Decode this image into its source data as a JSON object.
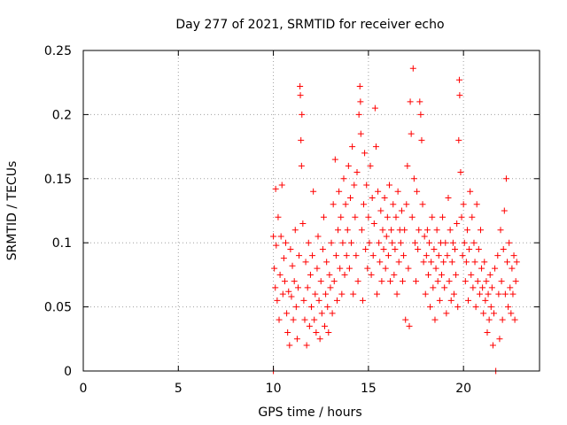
{
  "chart_data": {
    "type": "scatter",
    "title": "Day 277 of 2021, SRMTID for receiver echo",
    "xlabel": "GPS time / hours",
    "ylabel": "SRMTID / TECUs",
    "xlim": [
      0,
      24
    ],
    "ylim": [
      0,
      0.25
    ],
    "xticks": [
      0,
      5,
      10,
      15,
      20
    ],
    "xtick_labels": [
      "0",
      "5",
      "10",
      "15",
      "20"
    ],
    "yticks": [
      0,
      0.05,
      0.1,
      0.15,
      0.2,
      0.25
    ],
    "ytick_labels": [
      "0",
      "0.05",
      "0.1",
      "0.15",
      "0.2",
      "0.25"
    ],
    "grid": true,
    "marker": "plus",
    "point_color": "#ff0000",
    "series": [
      {
        "name": "SRMTID",
        "points": [
          [
            10.0,
            0.0
          ],
          [
            21.7,
            0.0
          ],
          [
            10.0,
            0.105
          ],
          [
            10.05,
            0.08
          ],
          [
            10.1,
            0.065
          ],
          [
            10.12,
            0.142
          ],
          [
            10.15,
            0.098
          ],
          [
            10.2,
            0.055
          ],
          [
            10.25,
            0.12
          ],
          [
            10.3,
            0.04
          ],
          [
            10.35,
            0.075
          ],
          [
            10.4,
            0.105
          ],
          [
            10.45,
            0.145
          ],
          [
            10.5,
            0.06
          ],
          [
            10.55,
            0.088
          ],
          [
            10.6,
            0.07
          ],
          [
            10.65,
            0.1
          ],
          [
            10.7,
            0.045
          ],
          [
            10.75,
            0.03
          ],
          [
            10.8,
            0.062
          ],
          [
            10.85,
            0.02
          ],
          [
            10.9,
            0.095
          ],
          [
            10.95,
            0.058
          ],
          [
            11.0,
            0.082
          ],
          [
            11.05,
            0.04
          ],
          [
            11.1,
            0.07
          ],
          [
            11.15,
            0.11
          ],
          [
            11.2,
            0.05
          ],
          [
            11.25,
            0.025
          ],
          [
            11.3,
            0.065
          ],
          [
            11.35,
            0.09
          ],
          [
            11.4,
            0.222
          ],
          [
            11.42,
            0.215
          ],
          [
            11.45,
            0.18
          ],
          [
            11.48,
            0.16
          ],
          [
            11.5,
            0.2
          ],
          [
            11.55,
            0.115
          ],
          [
            11.6,
            0.055
          ],
          [
            11.65,
            0.04
          ],
          [
            11.7,
            0.085
          ],
          [
            11.75,
            0.02
          ],
          [
            11.8,
            0.065
          ],
          [
            11.85,
            0.1
          ],
          [
            11.9,
            0.035
          ],
          [
            11.95,
            0.075
          ],
          [
            12.0,
            0.05
          ],
          [
            12.05,
            0.09
          ],
          [
            12.1,
            0.14
          ],
          [
            12.15,
            0.04
          ],
          [
            12.2,
            0.06
          ],
          [
            12.25,
            0.03
          ],
          [
            12.3,
            0.08
          ],
          [
            12.35,
            0.105
          ],
          [
            12.4,
            0.055
          ],
          [
            12.45,
            0.025
          ],
          [
            12.5,
            0.07
          ],
          [
            12.55,
            0.045
          ],
          [
            12.6,
            0.095
          ],
          [
            12.65,
            0.12
          ],
          [
            12.7,
            0.035
          ],
          [
            12.75,
            0.06
          ],
          [
            12.8,
            0.085
          ],
          [
            12.85,
            0.05
          ],
          [
            12.9,
            0.03
          ],
          [
            12.95,
            0.075
          ],
          [
            13.0,
            0.065
          ],
          [
            13.05,
            0.1
          ],
          [
            13.1,
            0.045
          ],
          [
            13.15,
            0.13
          ],
          [
            13.2,
            0.07
          ],
          [
            13.25,
            0.165
          ],
          [
            13.3,
            0.09
          ],
          [
            13.35,
            0.055
          ],
          [
            13.4,
            0.11
          ],
          [
            13.45,
            0.14
          ],
          [
            13.5,
            0.08
          ],
          [
            13.55,
            0.12
          ],
          [
            13.6,
            0.06
          ],
          [
            13.65,
            0.1
          ],
          [
            13.7,
            0.15
          ],
          [
            13.75,
            0.075
          ],
          [
            13.8,
            0.13
          ],
          [
            13.85,
            0.09
          ],
          [
            13.9,
            0.11
          ],
          [
            13.95,
            0.16
          ],
          [
            14.0,
            0.08
          ],
          [
            14.05,
            0.135
          ],
          [
            14.1,
            0.1
          ],
          [
            14.15,
            0.175
          ],
          [
            14.2,
            0.06
          ],
          [
            14.25,
            0.145
          ],
          [
            14.3,
            0.12
          ],
          [
            14.35,
            0.09
          ],
          [
            14.4,
            0.155
          ],
          [
            14.45,
            0.07
          ],
          [
            14.5,
            0.2
          ],
          [
            14.55,
            0.222
          ],
          [
            14.58,
            0.21
          ],
          [
            14.6,
            0.185
          ],
          [
            14.65,
            0.11
          ],
          [
            14.7,
            0.055
          ],
          [
            14.75,
            0.13
          ],
          [
            14.8,
            0.17
          ],
          [
            14.85,
            0.095
          ],
          [
            14.9,
            0.145
          ],
          [
            14.95,
            0.08
          ],
          [
            15.0,
            0.12
          ],
          [
            15.05,
            0.1
          ],
          [
            15.1,
            0.16
          ],
          [
            15.15,
            0.075
          ],
          [
            15.2,
            0.135
          ],
          [
            15.25,
            0.09
          ],
          [
            15.3,
            0.115
          ],
          [
            15.35,
            0.205
          ],
          [
            15.4,
            0.175
          ],
          [
            15.45,
            0.06
          ],
          [
            15.5,
            0.14
          ],
          [
            15.55,
            0.1
          ],
          [
            15.6,
            0.085
          ],
          [
            15.65,
            0.125
          ],
          [
            15.7,
            0.07
          ],
          [
            15.75,
            0.11
          ],
          [
            15.8,
            0.095
          ],
          [
            15.85,
            0.135
          ],
          [
            15.9,
            0.08
          ],
          [
            15.95,
            0.105
          ],
          [
            16.0,
            0.12
          ],
          [
            16.05,
            0.09
          ],
          [
            16.1,
            0.145
          ],
          [
            16.15,
            0.07
          ],
          [
            16.2,
            0.11
          ],
          [
            16.25,
            0.1
          ],
          [
            16.3,
            0.13
          ],
          [
            16.35,
            0.075
          ],
          [
            16.4,
            0.095
          ],
          [
            16.45,
            0.12
          ],
          [
            16.5,
            0.06
          ],
          [
            16.55,
            0.14
          ],
          [
            16.6,
            0.085
          ],
          [
            16.65,
            0.11
          ],
          [
            16.7,
            0.1
          ],
          [
            16.75,
            0.125
          ],
          [
            16.8,
            0.07
          ],
          [
            16.85,
            0.09
          ],
          [
            16.9,
            0.11
          ],
          [
            16.95,
            0.04
          ],
          [
            17.0,
            0.13
          ],
          [
            17.05,
            0.16
          ],
          [
            17.1,
            0.08
          ],
          [
            17.15,
            0.035
          ],
          [
            17.2,
            0.21
          ],
          [
            17.25,
            0.185
          ],
          [
            17.3,
            0.12
          ],
          [
            17.35,
            0.236
          ],
          [
            17.4,
            0.15
          ],
          [
            17.45,
            0.1
          ],
          [
            17.5,
            0.07
          ],
          [
            17.55,
            0.14
          ],
          [
            17.6,
            0.095
          ],
          [
            17.65,
            0.11
          ],
          [
            17.7,
            0.21
          ],
          [
            17.75,
            0.2
          ],
          [
            17.8,
            0.18
          ],
          [
            17.85,
            0.13
          ],
          [
            17.9,
            0.085
          ],
          [
            17.95,
            0.105
          ],
          [
            18.0,
            0.06
          ],
          [
            18.05,
            0.09
          ],
          [
            18.1,
            0.11
          ],
          [
            18.15,
            0.075
          ],
          [
            18.2,
            0.1
          ],
          [
            18.25,
            0.05
          ],
          [
            18.3,
            0.085
          ],
          [
            18.35,
            0.12
          ],
          [
            18.4,
            0.065
          ],
          [
            18.45,
            0.095
          ],
          [
            18.5,
            0.04
          ],
          [
            18.55,
            0.08
          ],
          [
            18.6,
            0.11
          ],
          [
            18.65,
            0.07
          ],
          [
            18.7,
            0.09
          ],
          [
            18.75,
            0.055
          ],
          [
            18.8,
            0.1
          ],
          [
            18.85,
            0.075
          ],
          [
            18.9,
            0.12
          ],
          [
            18.95,
            0.085
          ],
          [
            19.0,
            0.065
          ],
          [
            19.05,
            0.1
          ],
          [
            19.1,
            0.045
          ],
          [
            19.15,
            0.09
          ],
          [
            19.2,
            0.135
          ],
          [
            19.25,
            0.07
          ],
          [
            19.3,
            0.11
          ],
          [
            19.35,
            0.055
          ],
          [
            19.4,
            0.085
          ],
          [
            19.45,
            0.1
          ],
          [
            19.5,
            0.06
          ],
          [
            19.55,
            0.095
          ],
          [
            19.6,
            0.075
          ],
          [
            19.65,
            0.115
          ],
          [
            19.7,
            0.05
          ],
          [
            19.75,
            0.18
          ],
          [
            19.78,
            0.227
          ],
          [
            19.8,
            0.215
          ],
          [
            19.85,
            0.155
          ],
          [
            19.9,
            0.12
          ],
          [
            19.95,
            0.09
          ],
          [
            20.0,
            0.13
          ],
          [
            20.05,
            0.1
          ],
          [
            20.1,
            0.07
          ],
          [
            20.15,
            0.085
          ],
          [
            20.2,
            0.11
          ],
          [
            20.25,
            0.055
          ],
          [
            20.3,
            0.095
          ],
          [
            20.35,
            0.14
          ],
          [
            20.4,
            0.075
          ],
          [
            20.45,
            0.12
          ],
          [
            20.5,
            0.065
          ],
          [
            20.55,
            0.1
          ],
          [
            20.6,
            0.085
          ],
          [
            20.65,
            0.05
          ],
          [
            20.7,
            0.13
          ],
          [
            20.75,
            0.07
          ],
          [
            20.8,
            0.095
          ],
          [
            20.85,
            0.06
          ],
          [
            20.9,
            0.11
          ],
          [
            20.95,
            0.08
          ],
          [
            21.0,
            0.065
          ],
          [
            21.05,
            0.045
          ],
          [
            21.1,
            0.085
          ],
          [
            21.15,
            0.055
          ],
          [
            21.2,
            0.07
          ],
          [
            21.25,
            0.03
          ],
          [
            21.3,
            0.06
          ],
          [
            21.35,
            0.04
          ],
          [
            21.4,
            0.075
          ],
          [
            21.45,
            0.05
          ],
          [
            21.5,
            0.065
          ],
          [
            21.55,
            0.02
          ],
          [
            21.6,
            0.045
          ],
          [
            21.65,
            0.08
          ],
          [
            21.8,
            0.09
          ],
          [
            21.85,
            0.06
          ],
          [
            21.9,
            0.025
          ],
          [
            21.95,
            0.11
          ],
          [
            22.0,
            0.07
          ],
          [
            22.05,
            0.04
          ],
          [
            22.1,
            0.095
          ],
          [
            22.15,
            0.125
          ],
          [
            22.2,
            0.06
          ],
          [
            22.25,
            0.15
          ],
          [
            22.3,
            0.085
          ],
          [
            22.35,
            0.05
          ],
          [
            22.4,
            0.1
          ],
          [
            22.45,
            0.065
          ],
          [
            22.5,
            0.045
          ],
          [
            22.55,
            0.08
          ],
          [
            22.6,
            0.06
          ],
          [
            22.65,
            0.09
          ],
          [
            22.7,
            0.04
          ],
          [
            22.75,
            0.07
          ],
          [
            22.8,
            0.085
          ]
        ]
      }
    ]
  }
}
